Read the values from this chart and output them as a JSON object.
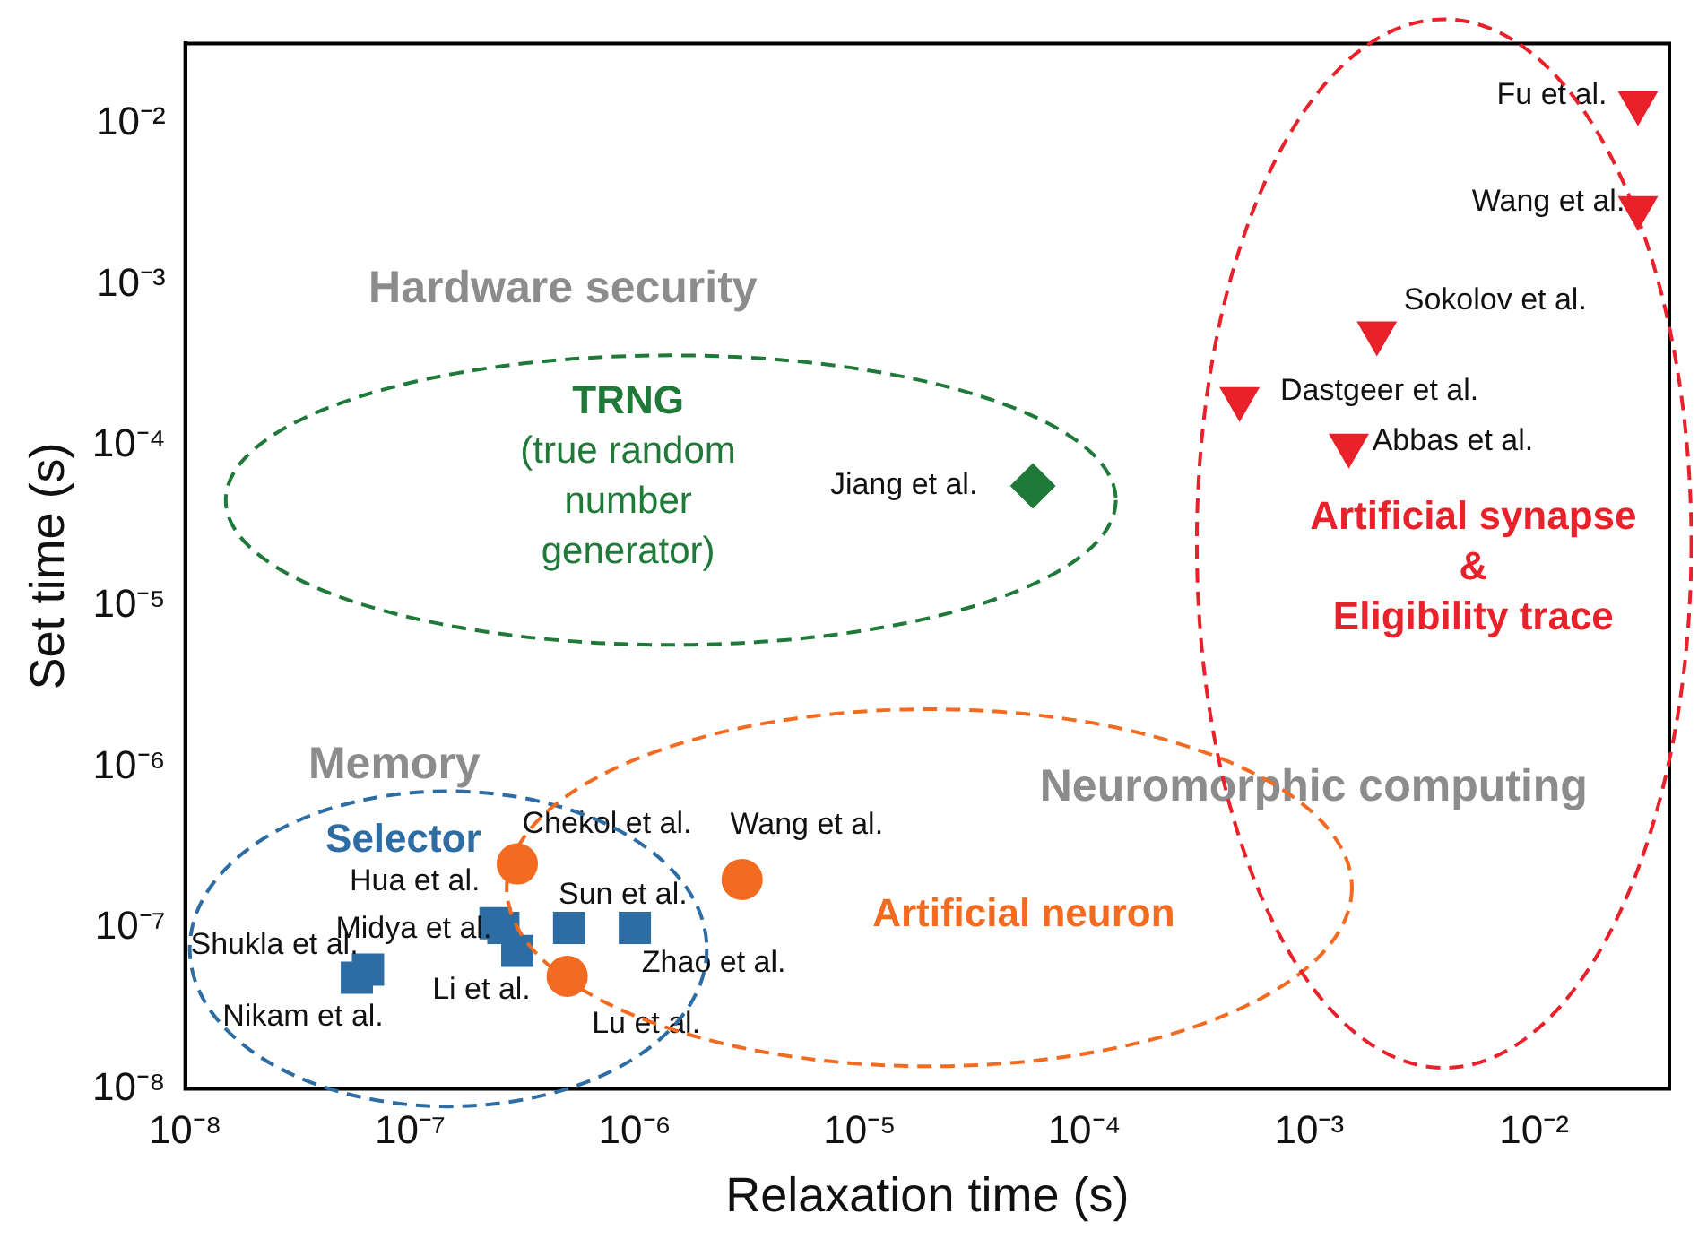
{
  "chart_data": {
    "type": "scatter",
    "xlabel": "Relaxation time (s)",
    "ylabel": "Set time (s)",
    "log": "xy",
    "grid": false,
    "legend": false,
    "xlim": [
      1e-08,
      0.04
    ],
    "ylim": [
      1e-08,
      0.0316
    ],
    "xticks": [
      {
        "value": 1e-08,
        "label": "10⁻⁸"
      },
      {
        "value": 1e-07,
        "label": "10⁻⁷"
      },
      {
        "value": 1e-06,
        "label": "10⁻⁶"
      },
      {
        "value": 1e-05,
        "label": "10⁻⁵"
      },
      {
        "value": 0.0001,
        "label": "10⁻⁴"
      },
      {
        "value": 0.001,
        "label": "10⁻³"
      },
      {
        "value": 0.01,
        "label": "10⁻²"
      }
    ],
    "yticks": [
      {
        "value": 1e-08,
        "label": "10⁻⁸"
      },
      {
        "value": 1e-07,
        "label": "10⁻⁷"
      },
      {
        "value": 1e-06,
        "label": "10⁻⁶"
      },
      {
        "value": 1e-05,
        "label": "10⁻⁵"
      },
      {
        "value": 0.0001,
        "label": "10⁻⁴"
      },
      {
        "value": 0.001,
        "label": "10⁻³"
      },
      {
        "value": 0.01,
        "label": "10⁻²"
      }
    ],
    "series": [
      {
        "name": "Selector",
        "color": "#2e6da4",
        "marker": "square",
        "x": [
          5.8e-08,
          6.5e-08,
          2.4e-07,
          2.6e-07,
          3e-07,
          5.1e-07,
          1e-06
        ],
        "values": [
          4.9e-08,
          5.5e-08,
          1.07e-07,
          1e-07,
          7.2e-08,
          1e-07,
          1e-07
        ]
      },
      {
        "name": "Artificial neuron",
        "color": "#f26b21",
        "marker": "circle",
        "x": [
          3e-07,
          5e-07,
          3e-06
        ],
        "values": [
          2.5e-07,
          5e-08,
          2e-07
        ]
      },
      {
        "name": "TRNG\n(true random\nnumber\ngenerator)",
        "color": "#1f7a3a",
        "marker": "diamond",
        "x": [
          5.9e-05
        ],
        "values": [
          5.6e-05
        ]
      },
      {
        "name": "Artificial synapse\n&\nEligibility trace",
        "color": "#e8212a",
        "marker": "triangle",
        "x": [
          0.029,
          0.029,
          0.002,
          0.00049,
          0.0015
        ],
        "values": [
          0.0135,
          0.003,
          0.0005,
          0.000195,
          0.0001
        ]
      }
    ],
    "annotations": [
      "Hardware security",
      "Memory",
      "Neuromorphic computing",
      {
        "text": "Fu et al.",
        "x": 0.029,
        "y": 0.0135
      },
      {
        "text": "Wang et al.",
        "x": 0.029,
        "y": 0.003
      },
      {
        "text": "Sokolov et al.",
        "x": 0.002,
        "y": 0.0005
      },
      {
        "text": "Dastgeer et al.",
        "x": 0.00049,
        "y": 0.000195
      },
      {
        "text": "Abbas et al.",
        "x": 0.0015,
        "y": 0.0001
      },
      {
        "text": "Jiang et al.",
        "x": 5.9e-05,
        "y": 5.6e-05
      },
      {
        "text": "Chekol et al.",
        "x": 3e-07,
        "y": 2.5e-07
      },
      {
        "text": "Wang et al.",
        "x": 3e-06,
        "y": 2e-07
      },
      {
        "text": "Hua et al.",
        "x": 2.4e-07,
        "y": 1.07e-07
      },
      {
        "text": "Sun et al.",
        "x": 5.1e-07,
        "y": 1e-07
      },
      {
        "text": "Midya et al.",
        "x": 2.6e-07,
        "y": 1e-07
      },
      {
        "text": "Shukla et al.",
        "x": 5.8e-08,
        "y": 4.9e-08
      },
      {
        "text": "Zhao et al.",
        "x": 1e-06,
        "y": 1e-07
      },
      {
        "text": "Li et al.",
        "x": 3e-07,
        "y": 7.2e-08
      },
      {
        "text": "Nikam et al.",
        "x": 5.8e-08,
        "y": 4.9e-08
      },
      {
        "text": "Lu et al.",
        "x": 5e-07,
        "y": 5e-08
      }
    ]
  }
}
